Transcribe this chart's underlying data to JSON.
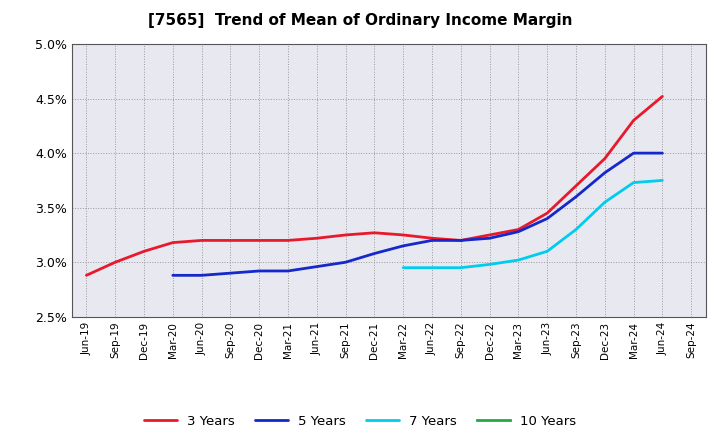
{
  "title": "[7565]  Trend of Mean of Ordinary Income Margin",
  "background_color": "#ffffff",
  "plot_background": "#e8e8f0",
  "grid_color": "#999999",
  "ylim": [
    0.025,
    0.05
  ],
  "yticks": [
    0.025,
    0.03,
    0.035,
    0.04,
    0.045,
    0.05
  ],
  "x_labels": [
    "Jun-19",
    "Sep-19",
    "Dec-19",
    "Mar-20",
    "Jun-20",
    "Sep-20",
    "Dec-20",
    "Mar-21",
    "Jun-21",
    "Sep-21",
    "Dec-21",
    "Mar-22",
    "Jun-22",
    "Sep-22",
    "Dec-22",
    "Mar-23",
    "Jun-23",
    "Sep-23",
    "Dec-23",
    "Mar-24",
    "Jun-24",
    "Sep-24"
  ],
  "series": {
    "3 Years": {
      "color": "#e8192c",
      "linewidth": 2.0,
      "values": [
        0.0288,
        0.03,
        0.031,
        0.0318,
        0.032,
        0.032,
        0.032,
        0.032,
        0.0322,
        0.0325,
        0.0327,
        0.0325,
        0.0322,
        0.032,
        0.0325,
        0.033,
        0.0345,
        0.037,
        0.0395,
        0.043,
        0.0452,
        null
      ]
    },
    "5 Years": {
      "color": "#1428cc",
      "linewidth": 2.0,
      "values": [
        null,
        null,
        null,
        0.0288,
        0.0288,
        0.029,
        0.0292,
        0.0292,
        0.0296,
        0.03,
        0.0308,
        0.0315,
        0.032,
        0.032,
        0.0322,
        0.0328,
        0.034,
        0.036,
        0.0382,
        0.04,
        0.04,
        null
      ]
    },
    "7 Years": {
      "color": "#00ccee",
      "linewidth": 2.0,
      "values": [
        null,
        null,
        null,
        null,
        null,
        null,
        null,
        null,
        null,
        null,
        null,
        0.0295,
        0.0295,
        0.0295,
        0.0298,
        0.0302,
        0.031,
        0.033,
        0.0355,
        0.0373,
        0.0375,
        null
      ]
    },
    "10 Years": {
      "color": "#22aa44",
      "linewidth": 2.0,
      "values": [
        null,
        null,
        null,
        null,
        null,
        null,
        null,
        null,
        null,
        null,
        null,
        null,
        null,
        null,
        null,
        null,
        null,
        null,
        null,
        null,
        null,
        null
      ]
    }
  },
  "legend_order": [
    "3 Years",
    "5 Years",
    "7 Years",
    "10 Years"
  ]
}
